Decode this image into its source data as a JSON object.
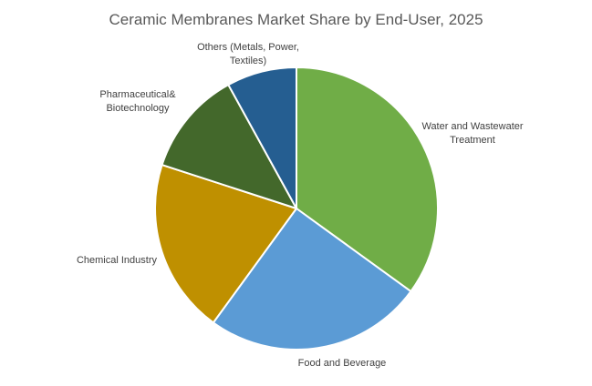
{
  "chart_data": {
    "type": "pie",
    "title": "Ceramic Membranes Market Share by End-User, 2025",
    "start_angle_deg": 0,
    "direction": "clockwise",
    "slices": [
      {
        "label": "Water and Wastewater Treatment",
        "label_lines": [
          "Water and Wastewater",
          "Treatment"
        ],
        "value": 35,
        "color": "#70AD47"
      },
      {
        "label": "Food and Beverage",
        "label_lines": [
          "Food and Beverage"
        ],
        "value": 25,
        "color": "#5B9BD5"
      },
      {
        "label": "Chemical Industry",
        "label_lines": [
          "Chemical Industry"
        ],
        "value": 20,
        "color": "#BF9000"
      },
      {
        "label": "Pharmaceutical& Biotechnology",
        "label_lines": [
          "Pharmaceutical&",
          "Biotechnology"
        ],
        "value": 12,
        "color": "#43682B"
      },
      {
        "label": "Others (Metals, Power, Textiles)",
        "label_lines": [
          "Others (Metals, Power,",
          "Textiles)"
        ],
        "value": 8,
        "color": "#255E91"
      }
    ],
    "legend": "none"
  }
}
